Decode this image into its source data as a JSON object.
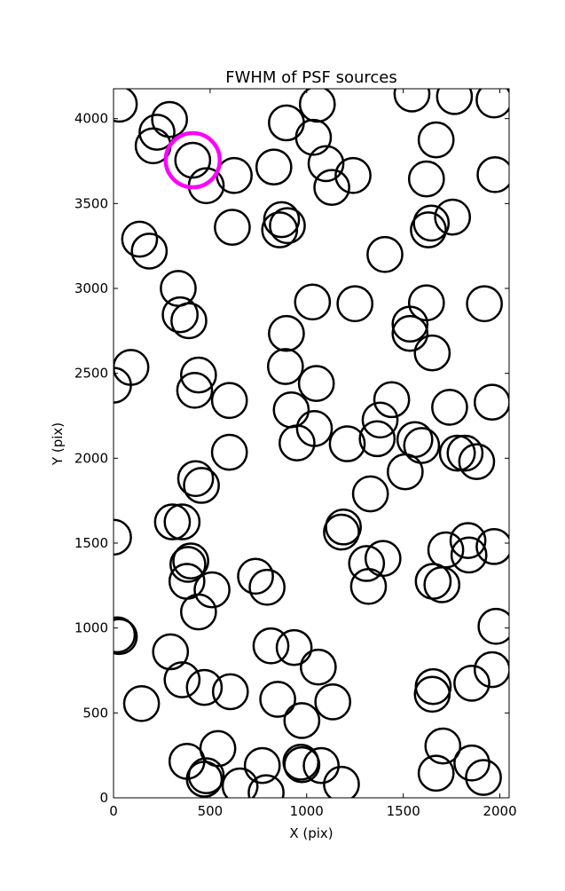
{
  "chart_data": {
    "type": "scatter",
    "title": "FWHM of PSF sources",
    "xlabel": "X (pix)",
    "ylabel": "Y (pix)",
    "xlim": [
      0,
      2048
    ],
    "ylim": [
      0,
      4176
    ],
    "x_ticks": [
      0,
      500,
      1000,
      1500,
      2000
    ],
    "y_ticks": [
      0,
      500,
      1000,
      1500,
      2000,
      2500,
      3000,
      3500,
      4000
    ],
    "x_tick_labels": [
      "0",
      "500",
      "1000",
      "1500",
      "2000"
    ],
    "y_tick_labels": [
      "0",
      "500",
      "1000",
      "1500",
      "2000",
      "2500",
      "3000",
      "3500",
      "4000"
    ],
    "marker_radius_data_x": 90,
    "highlight_radius_data_x": 140,
    "default_color": "#000000",
    "highlight_color": "#ff00ff",
    "sources": [
      [
        30,
        4085
      ],
      [
        290,
        3995
      ],
      [
        225,
        3920
      ],
      [
        205,
        3840
      ],
      [
        410,
        3755
      ],
      [
        480,
        3605
      ],
      [
        625,
        3665
      ],
      [
        830,
        3715
      ],
      [
        895,
        3975
      ],
      [
        1035,
        3890
      ],
      [
        1055,
        4085
      ],
      [
        1100,
        3735
      ],
      [
        1130,
        3595
      ],
      [
        1240,
        3665
      ],
      [
        1545,
        4145
      ],
      [
        1765,
        4130
      ],
      [
        1970,
        4110
      ],
      [
        1670,
        3875
      ],
      [
        1620,
        3645
      ],
      [
        1975,
        3670
      ],
      [
        1755,
        3420
      ],
      [
        1645,
        3385
      ],
      [
        1630,
        3345
      ],
      [
        870,
        3405
      ],
      [
        900,
        3370
      ],
      [
        860,
        3345
      ],
      [
        615,
        3360
      ],
      [
        135,
        3290
      ],
      [
        185,
        3220
      ],
      [
        1405,
        3200
      ],
      [
        335,
        3000
      ],
      [
        345,
        2845
      ],
      [
        390,
        2810
      ],
      [
        1030,
        2920
      ],
      [
        1250,
        2910
      ],
      [
        1620,
        2915
      ],
      [
        1920,
        2910
      ],
      [
        1535,
        2790
      ],
      [
        1535,
        2735
      ],
      [
        1650,
        2620
      ],
      [
        895,
        2735
      ],
      [
        890,
        2540
      ],
      [
        90,
        2535
      ],
      [
        0,
        2430
      ],
      [
        440,
        2490
      ],
      [
        420,
        2400
      ],
      [
        600,
        2340
      ],
      [
        1050,
        2440
      ],
      [
        1440,
        2345
      ],
      [
        920,
        2285
      ],
      [
        1960,
        2330
      ],
      [
        1740,
        2300
      ],
      [
        1380,
        2225
      ],
      [
        1040,
        2175
      ],
      [
        950,
        2090
      ],
      [
        1210,
        2085
      ],
      [
        1365,
        2115
      ],
      [
        1560,
        2110
      ],
      [
        1595,
        2075
      ],
      [
        1780,
        2030
      ],
      [
        1820,
        2030
      ],
      [
        1880,
        1980
      ],
      [
        1510,
        1920
      ],
      [
        600,
        2035
      ],
      [
        425,
        1880
      ],
      [
        455,
        1840
      ],
      [
        1330,
        1790
      ],
      [
        305,
        1625
      ],
      [
        355,
        1625
      ],
      [
        0,
        1535
      ],
      [
        1190,
        1595
      ],
      [
        1180,
        1565
      ],
      [
        1655,
        1275
      ],
      [
        1700,
        1255
      ],
      [
        1720,
        1460
      ],
      [
        1835,
        1515
      ],
      [
        1840,
        1430
      ],
      [
        1970,
        1480
      ],
      [
        1310,
        1380
      ],
      [
        1320,
        1245
      ],
      [
        1395,
        1410
      ],
      [
        400,
        1395
      ],
      [
        385,
        1375
      ],
      [
        380,
        1275
      ],
      [
        510,
        1225
      ],
      [
        440,
        1095
      ],
      [
        735,
        1305
      ],
      [
        795,
        1240
      ],
      [
        20,
        960
      ],
      [
        30,
        950
      ],
      [
        1980,
        1010
      ],
      [
        295,
        860
      ],
      [
        355,
        695
      ],
      [
        470,
        650
      ],
      [
        605,
        625
      ],
      [
        815,
        895
      ],
      [
        935,
        885
      ],
      [
        1060,
        770
      ],
      [
        1960,
        755
      ],
      [
        1855,
        675
      ],
      [
        1655,
        655
      ],
      [
        1650,
        610
      ],
      [
        145,
        555
      ],
      [
        850,
        580
      ],
      [
        975,
        455
      ],
      [
        1135,
        565
      ],
      [
        1705,
        305
      ],
      [
        1670,
        145
      ],
      [
        1855,
        205
      ],
      [
        1915,
        120
      ],
      [
        380,
        215
      ],
      [
        480,
        130
      ],
      [
        470,
        110
      ],
      [
        540,
        290
      ],
      [
        655,
        70
      ],
      [
        790,
        30
      ],
      [
        770,
        190
      ],
      [
        970,
        210
      ],
      [
        975,
        195
      ],
      [
        1075,
        190
      ],
      [
        1180,
        80
      ]
    ],
    "highlight": [
      410,
      3755
    ]
  }
}
